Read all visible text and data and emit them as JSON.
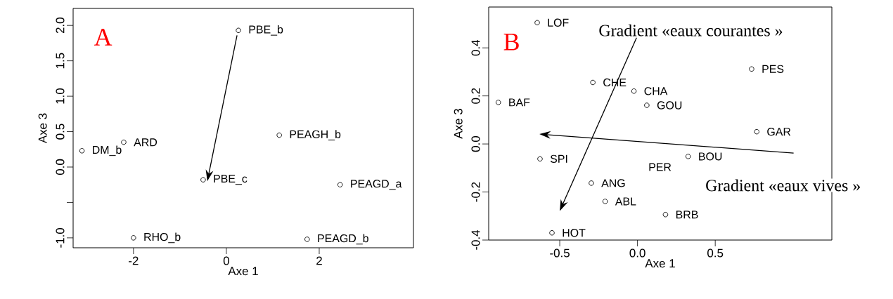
{
  "chart_data": [
    {
      "type": "scatter",
      "xlabel": "Axe 1",
      "ylabel": "Axe 3",
      "marker": "circle",
      "xlim": [
        -3.3,
        4.03
      ],
      "ylim": [
        -1.14,
        2.24
      ],
      "xticks": [
        -2,
        0,
        2
      ],
      "yticks": [
        {
          "value": -1.0,
          "label": "-1.0"
        },
        {
          "value": -0.5,
          "label": null
        },
        {
          "value": 0.0,
          "label": "0.0"
        },
        {
          "value": 0.5,
          "label": "0.5"
        },
        {
          "value": 1.0,
          "label": "1.0"
        },
        {
          "value": 1.5,
          "label": "1.5"
        },
        {
          "value": 2.0,
          "label": "2.0"
        }
      ],
      "series": [
        {
          "color": "#000000",
          "x": [
            0.26,
            -3.11,
            -2.21,
            1.14,
            -0.5,
            2.45,
            -2.0,
            1.74
          ],
          "values": [
            1.93,
            0.23,
            0.35,
            0.45,
            -0.18,
            -0.25,
            -1.0,
            -1.02
          ]
        }
      ],
      "annotations": [
        "A",
        {
          "text": "PBE_b",
          "x": 0.26,
          "y": 1.93
        },
        {
          "text": "DM_b",
          "x": -3.11,
          "y": 0.23
        },
        {
          "text": "ARD",
          "x": -2.21,
          "y": 0.35
        },
        {
          "text": "PEAGH_b",
          "x": 1.14,
          "y": 0.45
        },
        {
          "text": "PBE_c",
          "x": -0.5,
          "y": -0.18
        },
        {
          "text": "PEAGD_a",
          "x": 2.45,
          "y": -0.25
        },
        {
          "text": "RHO_b",
          "x": -2.0,
          "y": -1.0
        },
        {
          "text": "PEAGD_b",
          "x": 1.74,
          "y": -1.02
        }
      ]
    },
    {
      "type": "scatter",
      "xlabel": "Axe 1",
      "ylabel": "Axe 3",
      "marker": "circle",
      "xlim": [
        -0.957,
        1.25
      ],
      "ylim": [
        -0.4,
        0.57
      ],
      "xticks": [
        {
          "value": -0.5,
          "label": "-0.5"
        },
        {
          "value": 0.0,
          "label": "0.0"
        },
        {
          "value": 0.5,
          "label": "0.5"
        }
      ],
      "yticks": [
        {
          "value": -0.4,
          "label": "-0.4"
        },
        {
          "value": -0.2,
          "label": "-0.2"
        },
        {
          "value": 0.0,
          "label": "0.0"
        },
        {
          "value": 0.2,
          "label": "0.2"
        },
        {
          "value": 0.4,
          "label": "0.4"
        }
      ],
      "series": [
        {
          "color": "#000000",
          "x": [
            -0.645,
            -0.287,
            -0.023,
            0.06,
            0.734,
            -0.895,
            0.767,
            -0.627,
            0.326,
            -0.297,
            -0.208,
            0.18,
            -0.55
          ],
          "values": [
            0.505,
            0.256,
            0.22,
            0.161,
            0.312,
            0.173,
            0.051,
            -0.062,
            -0.052,
            -0.163,
            -0.239,
            -0.294,
            -0.37
          ]
        }
      ],
      "annotations": [
        "B",
        "Gradient «eaux courantes »",
        "Gradient «eaux vives »",
        "PER",
        {
          "text": "LOF",
          "x": -0.645,
          "y": 0.505
        },
        {
          "text": "CHE",
          "x": -0.287,
          "y": 0.256
        },
        {
          "text": "CHA",
          "x": -0.023,
          "y": 0.22
        },
        {
          "text": "GOU",
          "x": 0.06,
          "y": 0.161
        },
        {
          "text": "PES",
          "x": 0.734,
          "y": 0.312
        },
        {
          "text": "BAF",
          "x": -0.895,
          "y": 0.173
        },
        {
          "text": "GAR",
          "x": 0.767,
          "y": 0.051
        },
        {
          "text": "SPI",
          "x": -0.627,
          "y": -0.062
        },
        {
          "text": "BOU",
          "x": 0.326,
          "y": -0.052
        },
        {
          "text": "ANG",
          "x": -0.297,
          "y": -0.163
        },
        {
          "text": "ABL",
          "x": -0.208,
          "y": -0.239
        },
        {
          "text": "BRB",
          "x": 0.18,
          "y": -0.294
        },
        {
          "text": "HOT",
          "x": -0.55,
          "y": -0.37
        }
      ]
    }
  ]
}
